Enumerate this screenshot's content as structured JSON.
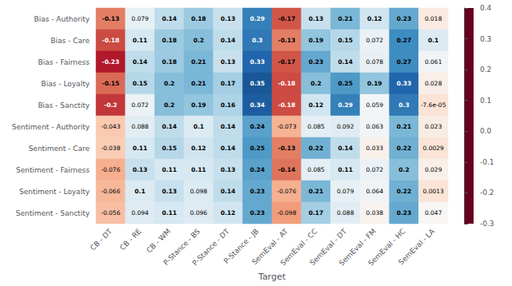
{
  "chart_data": {
    "type": "heatmap",
    "xlabel": "Target",
    "rows": [
      "Bias - Authority",
      "Bias - Care",
      "Bias - Fairness",
      "Bias - Loyalty",
      "Bias - Sanctity",
      "Sentiment - Authority",
      "Sentiment - Care",
      "Sentiment - Fairness",
      "Sentiment - Loyalty",
      "Sentiment - Sanctity"
    ],
    "categories": [
      "CB - DT",
      "CB - RE",
      "CB - WM",
      "P-Stance - BS",
      "P-Stance - DT",
      "P-Stance - JB",
      "SemEval - AT",
      "SemEval - CC",
      "SemEval - DT",
      "SemEval - FM",
      "SemEval - HC",
      "SemEval - LA"
    ],
    "values": [
      [
        -0.13,
        0.079,
        0.14,
        0.18,
        0.13,
        0.29,
        -0.17,
        0.13,
        0.21,
        0.12,
        0.23,
        0.018
      ],
      [
        -0.18,
        0.11,
        0.18,
        0.2,
        0.14,
        0.3,
        -0.13,
        0.19,
        0.15,
        0.072,
        0.27,
        0.1
      ],
      [
        -0.23,
        0.14,
        0.18,
        0.21,
        0.13,
        0.33,
        -0.17,
        0.23,
        0.14,
        0.078,
        0.27,
        0.061
      ],
      [
        -0.15,
        0.15,
        0.2,
        0.21,
        0.17,
        0.35,
        -0.18,
        0.2,
        0.25,
        0.19,
        0.33,
        0.028
      ],
      [
        -0.2,
        0.072,
        0.2,
        0.19,
        0.16,
        0.34,
        -0.18,
        0.12,
        0.29,
        0.059,
        0.3,
        -7.6e-05
      ],
      [
        -0.043,
        0.088,
        0.14,
        0.1,
        0.14,
        0.24,
        -0.073,
        0.085,
        0.092,
        0.063,
        0.21,
        0.023
      ],
      [
        -0.038,
        0.11,
        0.15,
        0.12,
        0.14,
        0.25,
        -0.13,
        0.22,
        0.14,
        0.033,
        0.22,
        0.0029
      ],
      [
        -0.076,
        0.13,
        0.11,
        0.11,
        0.13,
        0.24,
        -0.14,
        0.085,
        0.11,
        0.072,
        0.2,
        0.029
      ],
      [
        -0.066,
        0.1,
        0.13,
        0.098,
        0.14,
        0.23,
        -0.076,
        0.21,
        0.079,
        0.064,
        0.22,
        0.0013
      ],
      [
        -0.056,
        0.094,
        0.11,
        0.096,
        0.12,
        0.23,
        -0.098,
        0.17,
        0.088,
        0.038,
        0.23,
        0.047
      ]
    ],
    "value_labels": [
      [
        "-0.13",
        "0.079",
        "0.14",
        "0.18",
        "0.13",
        "0.29",
        "-0.17",
        "0.13",
        "0.21",
        "0.12",
        "0.23",
        "0.018"
      ],
      [
        "-0.18",
        "0.11",
        "0.18",
        "0.2",
        "0.14",
        "0.3",
        "-0.13",
        "0.19",
        "0.15",
        "0.072",
        "0.27",
        "0.1"
      ],
      [
        "-0.23",
        "0.14",
        "0.18",
        "0.21",
        "0.13",
        "0.33",
        "-0.17",
        "0.23",
        "0.14",
        "0.078",
        "0.27",
        "0.061"
      ],
      [
        "-0.15",
        "0.15",
        "0.2",
        "0.21",
        "0.17",
        "0.35",
        "-0.18",
        "0.2",
        "0.25",
        "0.19",
        "0.33",
        "0.028"
      ],
      [
        "-0.2",
        "0.072",
        "0.2",
        "0.19",
        "0.16",
        "0.34",
        "-0.18",
        "0.12",
        "0.29",
        "0.059",
        "0.3",
        "-7.6e-05"
      ],
      [
        "-0.043",
        "0.088",
        "0.14",
        "0.1",
        "0.14",
        "0.24",
        "-0.073",
        "0.085",
        "0.092",
        "0.063",
        "0.21",
        "0.023"
      ],
      [
        "-0.038",
        "0.11",
        "0.15",
        "0.12",
        "0.14",
        "0.25",
        "-0.13",
        "0.22",
        "0.14",
        "0.033",
        "0.22",
        "0.0029"
      ],
      [
        "-0.076",
        "0.13",
        "0.11",
        "0.11",
        "0.13",
        "0.24",
        "-0.14",
        "0.085",
        "0.11",
        "0.072",
        "0.2",
        "0.029"
      ],
      [
        "-0.066",
        "0.1",
        "0.13",
        "0.098",
        "0.14",
        "0.23",
        "-0.076",
        "0.21",
        "0.079",
        "0.064",
        "0.22",
        "0.0013"
      ],
      [
        "-0.056",
        "0.094",
        "0.11",
        "0.096",
        "0.12",
        "0.23",
        "-0.098",
        "0.17",
        "0.088",
        "0.038",
        "0.23",
        "0.047"
      ]
    ],
    "data_labels": true,
    "colorbar_range": [
      -0.3,
      0.4
    ],
    "colorbar_ticks": [
      0.4,
      0.3,
      0.2,
      0.1,
      {
        "value": 0,
        "label": "0.0"
      },
      -0.1,
      -0.2,
      -0.3
    ],
    "color": [
      "#67001f",
      "#b2182b",
      "#d6604d",
      "#f4a582",
      "#fddbc7",
      "#f7f7f7",
      "#d1e5f0",
      "#92c5de",
      "#4393c3",
      "#2166ac",
      "#053061"
    ]
  }
}
